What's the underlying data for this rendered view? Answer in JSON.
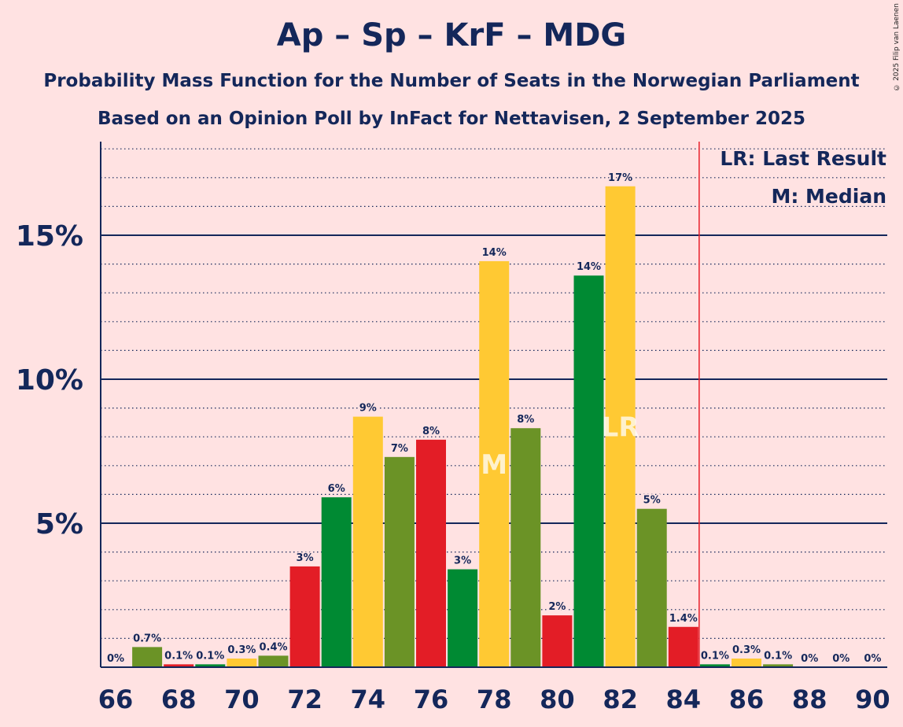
{
  "title": "Ap – Sp – KrF – MDG",
  "subtitle1": "Probability Mass Function for the Number of Seats in the Norwegian Parliament",
  "subtitle2": "Based on an Opinion Poll by InFact for Nettavisen, 2 September 2025",
  "copyright": "© 2025 Filip van Laenen",
  "legend": {
    "lr": "LR: Last Result",
    "m": "M: Median"
  },
  "colors": {
    "background": "#FFE2E2",
    "text": "#14275A",
    "lr_line": "#E8202A",
    "party_colors": [
      "#E31D26",
      "#008A33",
      "#FFC933",
      "#6B9326"
    ]
  },
  "chart_data": {
    "type": "bar",
    "x": [
      66,
      67,
      68,
      69,
      70,
      71,
      72,
      73,
      74,
      75,
      76,
      77,
      78,
      79,
      80,
      81,
      82,
      83,
      84,
      85,
      86,
      87,
      88,
      89,
      90
    ],
    "values": [
      0,
      0.7,
      0.1,
      0.1,
      0.3,
      0.4,
      3.5,
      5.9,
      8.7,
      7.3,
      7.9,
      3.4,
      14.1,
      8.3,
      1.8,
      13.6,
      16.7,
      5.5,
      1.4,
      0.1,
      0.3,
      0.1,
      0,
      0,
      0
    ],
    "labels": [
      "0%",
      "0.7%",
      "0.1%",
      "0.1%",
      "0.3%",
      "0.4%",
      "3%",
      "6%",
      "9%",
      "7%",
      "8%",
      "3%",
      "14%",
      "8%",
      "2%",
      "14%",
      "17%",
      "5%",
      "1.4%",
      "0.1%",
      "0.3%",
      "0.1%",
      "0%",
      "0%",
      "0%"
    ],
    "color_index": [
      0,
      3,
      0,
      1,
      2,
      3,
      0,
      1,
      2,
      3,
      0,
      1,
      2,
      3,
      0,
      1,
      2,
      3,
      0,
      1,
      2,
      3,
      0,
      1,
      2
    ],
    "x_ticks": [
      66,
      68,
      70,
      72,
      74,
      76,
      78,
      80,
      82,
      84,
      86,
      88,
      90
    ],
    "x_tick_labels": [
      "66",
      "68",
      "70",
      "72",
      "74",
      "76",
      "78",
      "80",
      "82",
      "84",
      "86",
      "88",
      "90"
    ],
    "y_ticks": [
      5,
      10,
      15
    ],
    "y_tick_labels": [
      "5%",
      "10%",
      "15%"
    ],
    "ylim": [
      0,
      18
    ],
    "minor_grid_step": 1,
    "median": 78,
    "median_label": "M",
    "last_result": 82,
    "last_result_label": "LR",
    "majority_line_after": 84,
    "legend_position": "top-right"
  }
}
